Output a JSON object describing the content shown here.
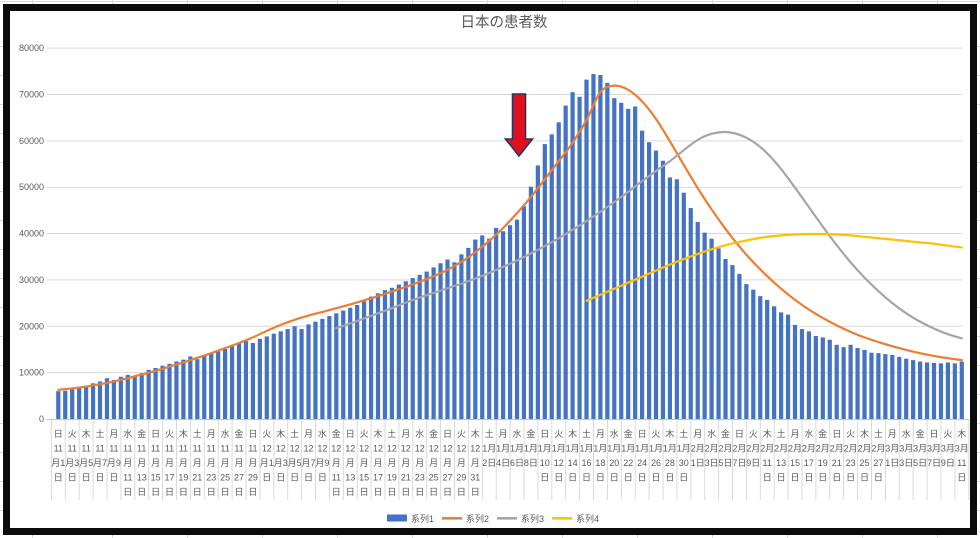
{
  "title": "日本の患者数",
  "colors": {
    "bar": "#4472C4",
    "series2": "#ED7D31",
    "series3": "#A5A5A5",
    "series4": "#FFC000",
    "axis_text": "#595959",
    "gridline": "#D9D9D9",
    "axis_line": "#C6C6C6",
    "arrow_fill": "#E0111E",
    "arrow_outline": "#1F3864",
    "frame": "#0B0B0B"
  },
  "legend": [
    {
      "label": "系列1",
      "type": "bar",
      "color": "#4472C4"
    },
    {
      "label": "系列2",
      "type": "line",
      "color": "#ED7D31"
    },
    {
      "label": "系列3",
      "type": "line",
      "color": "#A5A5A5"
    },
    {
      "label": "系列4",
      "type": "line",
      "color": "#FFC000"
    }
  ],
  "chart_data": {
    "type": "combo (daily bars + smoothed lines)",
    "title": "日本の患者数",
    "grid": "horizontal gridlines on, vertical tick separators in label zone",
    "legend_position": "bottom center",
    "y_axis": {
      "min": 0,
      "max": 80000,
      "step": 10000,
      "tick_labels": [
        "0",
        "10000",
        "20000",
        "30000",
        "40000",
        "50000",
        "60000",
        "70000",
        "80000"
      ]
    },
    "x_axis": {
      "description": "dates 11月1日–3月11日, daily bars, every 2nd day labeled with weekday",
      "labels": [
        {
          "w": "日",
          "m": 11,
          "d": 1
        },
        {
          "w": "火",
          "m": 11,
          "d": 3
        },
        {
          "w": "木",
          "m": 11,
          "d": 5
        },
        {
          "w": "土",
          "m": 11,
          "d": 7
        },
        {
          "w": "月",
          "m": 11,
          "d": 9
        },
        {
          "w": "水",
          "m": 11,
          "d": 11
        },
        {
          "w": "金",
          "m": 11,
          "d": 13
        },
        {
          "w": "日",
          "m": 11,
          "d": 15
        },
        {
          "w": "火",
          "m": 11,
          "d": 17
        },
        {
          "w": "木",
          "m": 11,
          "d": 19
        },
        {
          "w": "土",
          "m": 11,
          "d": 21
        },
        {
          "w": "月",
          "m": 11,
          "d": 23
        },
        {
          "w": "水",
          "m": 11,
          "d": 25
        },
        {
          "w": "金",
          "m": 11,
          "d": 27
        },
        {
          "w": "日",
          "m": 11,
          "d": 29
        },
        {
          "w": "火",
          "m": 12,
          "d": 1
        },
        {
          "w": "木",
          "m": 12,
          "d": 3
        },
        {
          "w": "土",
          "m": 12,
          "d": 5
        },
        {
          "w": "月",
          "m": 12,
          "d": 7
        },
        {
          "w": "水",
          "m": 12,
          "d": 9
        },
        {
          "w": "金",
          "m": 12,
          "d": 11
        },
        {
          "w": "日",
          "m": 12,
          "d": 13
        },
        {
          "w": "火",
          "m": 12,
          "d": 15
        },
        {
          "w": "木",
          "m": 12,
          "d": 17
        },
        {
          "w": "土",
          "m": 12,
          "d": 19
        },
        {
          "w": "月",
          "m": 12,
          "d": 21
        },
        {
          "w": "水",
          "m": 12,
          "d": 23
        },
        {
          "w": "金",
          "m": 12,
          "d": 25
        },
        {
          "w": "日",
          "m": 12,
          "d": 27
        },
        {
          "w": "火",
          "m": 12,
          "d": 29
        },
        {
          "w": "木",
          "m": 12,
          "d": 31
        },
        {
          "w": "土",
          "m": 1,
          "d": 2
        },
        {
          "w": "月",
          "m": 1,
          "d": 4
        },
        {
          "w": "水",
          "m": 1,
          "d": 6
        },
        {
          "w": "金",
          "m": 1,
          "d": 8
        },
        {
          "w": "日",
          "m": 1,
          "d": 10
        },
        {
          "w": "火",
          "m": 1,
          "d": 12
        },
        {
          "w": "木",
          "m": 1,
          "d": 14
        },
        {
          "w": "土",
          "m": 1,
          "d": 16
        },
        {
          "w": "月",
          "m": 1,
          "d": 18
        },
        {
          "w": "水",
          "m": 1,
          "d": 20
        },
        {
          "w": "金",
          "m": 1,
          "d": 22
        },
        {
          "w": "日",
          "m": 1,
          "d": 24
        },
        {
          "w": "火",
          "m": 1,
          "d": 26
        },
        {
          "w": "木",
          "m": 1,
          "d": 28
        },
        {
          "w": "土",
          "m": 1,
          "d": 30
        },
        {
          "w": "月",
          "m": 2,
          "d": 1
        },
        {
          "w": "水",
          "m": 2,
          "d": 3
        },
        {
          "w": "金",
          "m": 2,
          "d": 5
        },
        {
          "w": "日",
          "m": 2,
          "d": 7
        },
        {
          "w": "火",
          "m": 2,
          "d": 9
        },
        {
          "w": "木",
          "m": 2,
          "d": 11
        },
        {
          "w": "土",
          "m": 2,
          "d": 13
        },
        {
          "w": "月",
          "m": 2,
          "d": 15
        },
        {
          "w": "水",
          "m": 2,
          "d": 17
        },
        {
          "w": "金",
          "m": 2,
          "d": 19
        },
        {
          "w": "日",
          "m": 2,
          "d": 21
        },
        {
          "w": "火",
          "m": 2,
          "d": 23
        },
        {
          "w": "木",
          "m": 2,
          "d": 25
        },
        {
          "w": "土",
          "m": 2,
          "d": 27
        },
        {
          "w": "月",
          "m": 3,
          "d": 1
        },
        {
          "w": "水",
          "m": 3,
          "d": 3
        },
        {
          "w": "金",
          "m": 3,
          "d": 5
        },
        {
          "w": "日",
          "m": 3,
          "d": 7
        },
        {
          "w": "火",
          "m": 3,
          "d": 9
        },
        {
          "w": "木",
          "m": 3,
          "d": 11
        }
      ]
    },
    "series": [
      {
        "name": "系列1",
        "type": "bar",
        "color": "#4472C4",
        "start_day": 0,
        "day_step": 1,
        "values": [
          6000,
          6100,
          6600,
          7000,
          7100,
          7700,
          8100,
          8800,
          8400,
          9100,
          9500,
          9300,
          9900,
          10600,
          11000,
          11500,
          11900,
          12400,
          12800,
          13500,
          12900,
          13700,
          14100,
          14600,
          15100,
          15700,
          16300,
          16800,
          16400,
          17300,
          17800,
          18400,
          18900,
          19400,
          20000,
          19400,
          20400,
          21000,
          21600,
          22200,
          22800,
          23400,
          24000,
          24600,
          25400,
          26400,
          27100,
          27800,
          28300,
          29000,
          29700,
          30400,
          31100,
          31800,
          32700,
          33600,
          34400,
          33800,
          35500,
          36900,
          38700,
          39600,
          38900,
          41200,
          40500,
          41800,
          43000,
          45900,
          50100,
          54700,
          59300,
          61400,
          64000,
          67600,
          70500,
          69500,
          73200,
          74400,
          74200,
          72500,
          69200,
          68200,
          66900,
          67400,
          62200,
          59700,
          57900,
          55700,
          52100,
          51700,
          48800,
          45500,
          42500,
          40200,
          38900,
          36800,
          34500,
          33200,
          31300,
          29100,
          27900,
          26500,
          25700,
          24300,
          23000,
          22500,
          20300,
          19400,
          18900,
          17900,
          17600,
          17100,
          16000,
          15500,
          16000,
          15300,
          14900,
          14300,
          14200,
          14000,
          13800,
          13400,
          13000,
          12700,
          12400,
          12200,
          12100,
          12000,
          12200,
          12000,
          12400
        ]
      },
      {
        "name": "系列2",
        "type": "line",
        "color": "#ED7D31",
        "start_day": 0,
        "day_step": 2,
        "values": [
          6300,
          6600,
          7000,
          7500,
          8100,
          8800,
          9600,
          10400,
          11300,
          12200,
          13200,
          14200,
          15300,
          16400,
          17600,
          19000,
          20300,
          21400,
          22300,
          23100,
          23900,
          24700,
          25600,
          26500,
          27500,
          28500,
          29600,
          30800,
          32200,
          33900,
          36000,
          38400,
          41200,
          44400,
          47900,
          51700,
          55600,
          59600,
          64500,
          70500,
          71900,
          71000,
          68500,
          64700,
          59900,
          54800,
          49800,
          45200,
          41000,
          37200,
          33800,
          30800,
          28100,
          25700,
          23600,
          21800,
          20200,
          18800,
          17600,
          16600,
          15700,
          14900,
          14200,
          13600,
          13100,
          12700
        ]
      },
      {
        "name": "系列3",
        "type": "line",
        "color": "#A5A5A5",
        "start_day": 40,
        "day_step": 2,
        "values": [
          19600,
          20600,
          21700,
          22800,
          23900,
          25100,
          26200,
          27200,
          28200,
          29200,
          30300,
          31500,
          32800,
          34200,
          35700,
          37300,
          39000,
          40800,
          42700,
          44700,
          46800,
          49000,
          51300,
          53500,
          55600,
          58000,
          60200,
          61500,
          61900,
          61300,
          59800,
          57300,
          53900,
          49900,
          45700,
          41500,
          37500,
          33800,
          30500,
          27600,
          25000,
          22800,
          21000,
          19500,
          18300,
          17400
        ]
      },
      {
        "name": "系列4",
        "type": "line",
        "color": "#FFC000",
        "start_day": 76,
        "day_step": 2,
        "values": [
          25500,
          26800,
          28100,
          29400,
          30700,
          32000,
          33300,
          34500,
          35600,
          36600,
          37500,
          38200,
          38800,
          39300,
          39600,
          39800,
          39900,
          39900,
          39800,
          39600,
          39300,
          39000,
          38700,
          38400,
          38100,
          37800,
          37400,
          37000
        ]
      }
    ],
    "annotation": {
      "shape": "down-arrow",
      "fill": "#E0111E",
      "outline": "#1F3864",
      "points_at_day_index": 66,
      "points_at_date": "1月7日前後"
    }
  }
}
